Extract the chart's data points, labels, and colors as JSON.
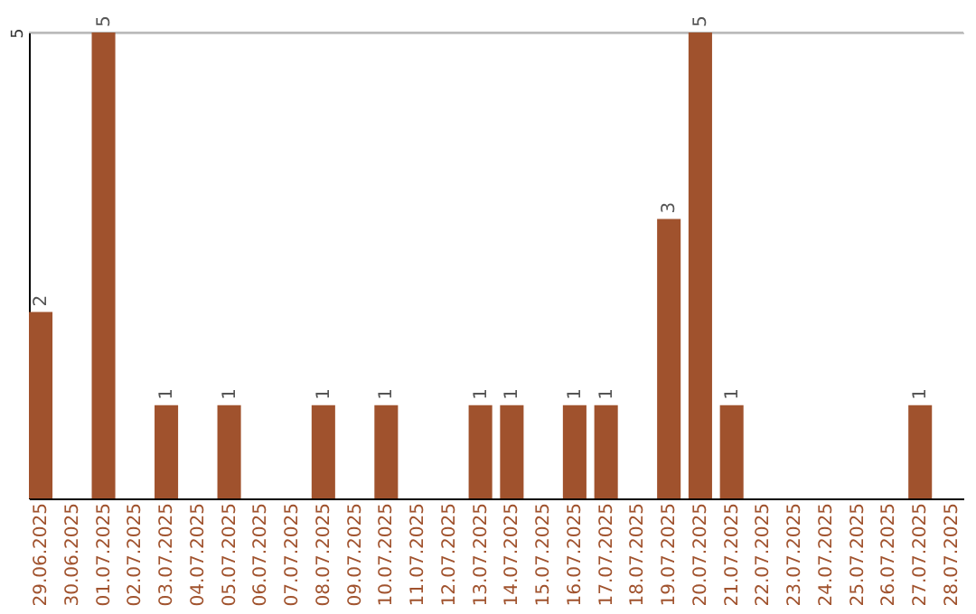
{
  "chart_data": {
    "type": "bar",
    "categories": [
      "29.06.2025",
      "30.06.2025",
      "01.07.2025",
      "02.07.2025",
      "03.07.2025",
      "04.07.2025",
      "05.07.2025",
      "06.07.2025",
      "07.07.2025",
      "08.07.2025",
      "09.07.2025",
      "10.07.2025",
      "11.07.2025",
      "12.07.2025",
      "13.07.2025",
      "14.07.2025",
      "15.07.2025",
      "16.07.2025",
      "17.07.2025",
      "18.07.2025",
      "19.07.2025",
      "20.07.2025",
      "21.07.2025",
      "22.07.2025",
      "23.07.2025",
      "24.07.2025",
      "25.07.2025",
      "26.07.2025",
      "27.07.2025",
      "28.07.2025"
    ],
    "values": [
      2,
      0,
      5,
      0,
      1,
      0,
      1,
      0,
      0,
      1,
      0,
      1,
      0,
      0,
      1,
      1,
      0,
      1,
      1,
      0,
      3,
      5,
      1,
      0,
      0,
      0,
      0,
      0,
      1,
      0
    ],
    "value_labels": [
      "2",
      null,
      "5",
      null,
      "1",
      null,
      "1",
      null,
      null,
      "1",
      null,
      "1",
      null,
      null,
      "1",
      "1",
      null,
      "1",
      "1",
      null,
      "3",
      "5",
      "1",
      null,
      null,
      null,
      null,
      null,
      "1",
      null
    ],
    "color": "#a0522d",
    "ylim": [
      0,
      5
    ],
    "yticks": [
      5
    ],
    "grid": "y"
  }
}
